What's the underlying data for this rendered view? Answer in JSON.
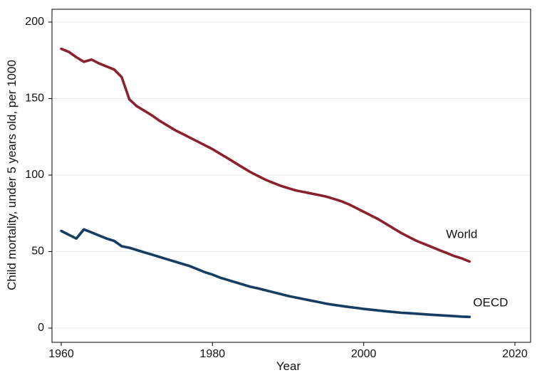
{
  "chart_data": {
    "type": "line",
    "xlabel": "Year",
    "ylabel": "Child mortality, under 5 years old, per 1000",
    "xlim": [
      1960,
      2020
    ],
    "ylim": [
      0,
      200
    ],
    "x_ticks": [
      "1960",
      "1980",
      "2000",
      "2020"
    ],
    "y_ticks": [
      "0",
      "50",
      "100",
      "150",
      "200"
    ],
    "x_tick_values": [
      1960,
      1980,
      2000,
      2020
    ],
    "y_tick_values": [
      0,
      50,
      100,
      150,
      200
    ],
    "grid": "horizontal",
    "legend": "none (series labelled directly at line ends)",
    "series": [
      {
        "name": "World",
        "color": "#8c2230",
        "x": [
          1960,
          1961,
          1962,
          1963,
          1964,
          1965,
          1966,
          1967,
          1968,
          1969,
          1970,
          1971,
          1972,
          1973,
          1974,
          1975,
          1976,
          1977,
          1978,
          1979,
          1980,
          1981,
          1982,
          1983,
          1984,
          1985,
          1986,
          1987,
          1988,
          1989,
          1990,
          1991,
          1992,
          1993,
          1994,
          1995,
          1996,
          1997,
          1998,
          1999,
          2000,
          2001,
          2002,
          2003,
          2004,
          2005,
          2006,
          2007,
          2008,
          2009,
          2010,
          2011,
          2012,
          2013,
          2014
        ],
        "values": [
          182.5,
          180.5,
          177,
          174,
          175.5,
          173,
          171,
          169,
          164,
          149.5,
          145,
          142,
          139,
          135.5,
          132.5,
          129.5,
          127,
          124.5,
          122,
          119.5,
          117,
          114,
          111,
          108,
          105,
          102,
          99.5,
          97,
          95,
          93,
          91.5,
          90,
          89,
          88,
          87,
          86,
          84.5,
          83,
          81,
          78.5,
          76,
          73.5,
          71,
          68,
          65,
          62,
          59.5,
          57,
          55,
          53,
          51,
          49,
          47,
          45.5,
          43.5
        ]
      },
      {
        "name": "OECD",
        "color": "#163e63",
        "x": [
          1960,
          1961,
          1962,
          1963,
          1964,
          1965,
          1966,
          1967,
          1968,
          1969,
          1970,
          1971,
          1972,
          1973,
          1974,
          1975,
          1976,
          1977,
          1978,
          1979,
          1980,
          1981,
          1982,
          1983,
          1984,
          1985,
          1986,
          1987,
          1988,
          1989,
          1990,
          1991,
          1992,
          1993,
          1994,
          1995,
          1996,
          1997,
          1998,
          1999,
          2000,
          2001,
          2002,
          2003,
          2004,
          2005,
          2006,
          2007,
          2008,
          2009,
          2010,
          2011,
          2012,
          2013,
          2014
        ],
        "values": [
          63.5,
          61,
          58.5,
          64.5,
          62.5,
          60.5,
          58.5,
          57,
          53.5,
          52.5,
          51,
          49.5,
          48,
          46.5,
          45,
          43.5,
          42,
          40.5,
          38.5,
          36.5,
          35,
          33,
          31.5,
          30,
          28.5,
          27,
          26,
          24.7,
          23.5,
          22.3,
          21,
          20,
          19,
          18,
          17,
          16,
          15.2,
          14.5,
          13.8,
          13.2,
          12.5,
          12,
          11.5,
          11,
          10.5,
          10,
          9.7,
          9.4,
          9,
          8.7,
          8.4,
          8.1,
          7.8,
          7.5,
          7.3
        ]
      }
    ]
  }
}
